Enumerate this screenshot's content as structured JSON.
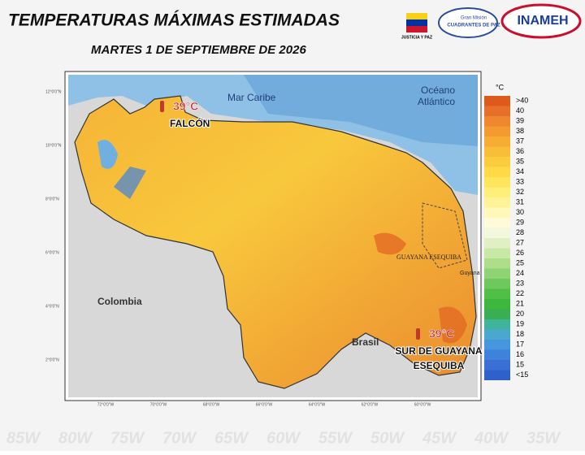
{
  "header": {
    "title": "TEMPERATURAS MÁXIMAS ESTIMADAS",
    "subtitle": "MARTES 1 DE SEPTIEMBRE DE 2026",
    "logo_left": "JUSTICIA Y PAZ",
    "logo_mid_top": "Gran Misión",
    "logo_mid_bottom": "CUADRANTES DE PAZ",
    "logo_right": "INAMEH"
  },
  "map": {
    "labels": {
      "sea": "Mar Caribe",
      "ocean_top": "Océano",
      "ocean_bottom": "Atlántico",
      "colombia": "Colombia",
      "brasil": "Brasil",
      "esequiba": "GUAYANA ESEQUIBA",
      "guyana": "Guyana"
    },
    "annotations": [
      {
        "value": "39°C",
        "place": "FALCÓN"
      },
      {
        "value": "39°C",
        "place": "SUR DE GUAYANA",
        "place2": "ESEQUIBA"
      }
    ],
    "lon_labels": [
      "72°0'0\"W",
      "70°0'0\"W",
      "68°0'0\"W",
      "66°0'0\"W",
      "64°0'0\"W",
      "62°0'0\"W",
      "60°0'0\"W"
    ],
    "lat_labels": [
      "12°0'0\"N",
      "10°0'0\"N",
      "8°0'0\"N",
      "6°0'0\"N",
      "4°0'0\"N",
      "2°0'0\"N"
    ],
    "background_lon": [
      "85W",
      "80W",
      "75W",
      "70W",
      "65W",
      "60W",
      "55W",
      "50W",
      "45W",
      "40W",
      "35W"
    ]
  },
  "legend": {
    "unit": "°C",
    "entries": [
      {
        "label": ">40",
        "color": "#dd5a1c"
      },
      {
        "label": "40",
        "color": "#e6702a"
      },
      {
        "label": "39",
        "color": "#ee872e"
      },
      {
        "label": "38",
        "color": "#f39a30"
      },
      {
        "label": "37",
        "color": "#f7ad34"
      },
      {
        "label": "36",
        "color": "#f9be38"
      },
      {
        "label": "35",
        "color": "#fbcc3e"
      },
      {
        "label": "34",
        "color": "#fdda46"
      },
      {
        "label": "33",
        "color": "#fee55a"
      },
      {
        "label": "32",
        "color": "#ffee78"
      },
      {
        "label": "31",
        "color": "#fff398"
      },
      {
        "label": "30",
        "color": "#fff8b8"
      },
      {
        "label": "29",
        "color": "#fffbd8"
      },
      {
        "label": "28",
        "color": "#f3f7dc"
      },
      {
        "label": "27",
        "color": "#e0f0c4"
      },
      {
        "label": "26",
        "color": "#c8e8a6"
      },
      {
        "label": "25",
        "color": "#acde8c"
      },
      {
        "label": "24",
        "color": "#8ed474"
      },
      {
        "label": "23",
        "color": "#6ec95c"
      },
      {
        "label": "22",
        "color": "#50bf46"
      },
      {
        "label": "21",
        "color": "#3db83c"
      },
      {
        "label": "20",
        "color": "#3aae52"
      },
      {
        "label": "19",
        "color": "#3fb39c"
      },
      {
        "label": "18",
        "color": "#4aa8cf"
      },
      {
        "label": "17",
        "color": "#4696de"
      },
      {
        "label": "16",
        "color": "#3f82dc"
      },
      {
        "label": "15",
        "color": "#3a70d6"
      },
      {
        "label": "<15",
        "color": "#3060cc"
      }
    ]
  }
}
